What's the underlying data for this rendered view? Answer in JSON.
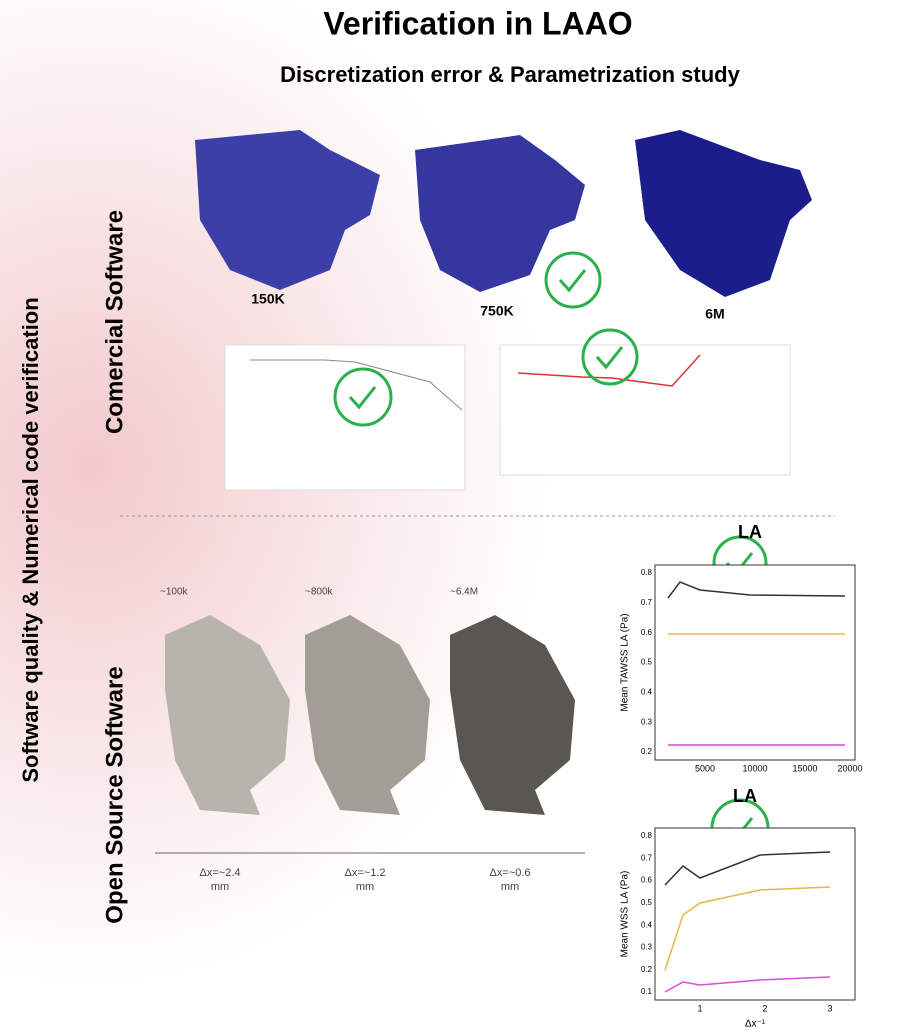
{
  "header": {
    "title": "Verification in LAAO",
    "subtitle": "Discretization error & Parametrization study"
  },
  "side_labels": {
    "main": "Software quality & Numerical code verification",
    "commercial": "Comercial Software",
    "open_source": "Open Source Software"
  },
  "commercial": {
    "meshes": [
      "150K",
      "750K",
      "6M"
    ]
  },
  "open_source": {
    "meshes": [
      "~100k",
      "~800k",
      "~6.4M"
    ],
    "resolutions": [
      {
        "value": "Δx=~2.4",
        "unit": "mm"
      },
      {
        "value": "Δx=~1.2",
        "unit": "mm"
      },
      {
        "value": "Δx=~0.6",
        "unit": "mm"
      }
    ]
  },
  "plots": [
    {
      "title": "LA",
      "y_label": "Mean TAWSS LA (Pa)",
      "y_ticks": [
        "0.2",
        "0.3",
        "0.4",
        "0.5",
        "0.6",
        "0.7",
        "0.8"
      ],
      "x_ticks": [
        "5000",
        "10000",
        "15000",
        "20000"
      ]
    },
    {
      "title": "LA",
      "y_label": "Mean WSS LA (Pa)",
      "x_label": "Δx⁻¹",
      "y_ticks": [
        "0.1",
        "0.2",
        "0.3",
        "0.4",
        "0.5",
        "0.6",
        "0.7",
        "0.8"
      ],
      "x_ticks": [
        "1",
        "2",
        "3"
      ]
    }
  ]
}
